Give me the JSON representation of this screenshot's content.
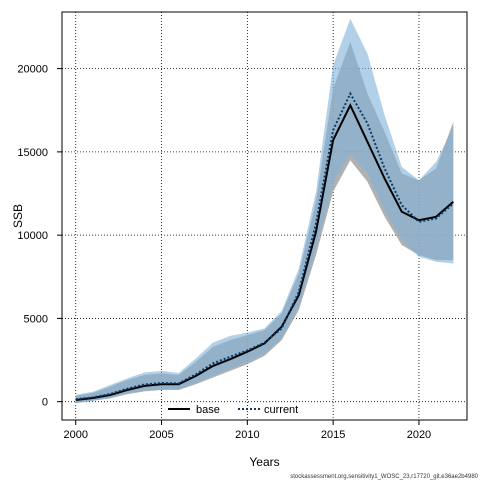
{
  "chart_data": {
    "type": "line",
    "xlabel": "Years",
    "ylabel": "SSB",
    "xlim": [
      1999.2,
      2022.8
    ],
    "ylim": [
      -1100,
      23400
    ],
    "xticks": [
      2000,
      2005,
      2010,
      2015,
      2020
    ],
    "yticks": [
      0,
      5000,
      10000,
      15000,
      20000
    ],
    "grid": true,
    "legend_position": "bottom-center",
    "x": [
      2000,
      2001,
      2002,
      2003,
      2004,
      2005,
      2006,
      2007,
      2008,
      2009,
      2010,
      2011,
      2012,
      2013,
      2014,
      2015,
      2016,
      2017,
      2018,
      2019,
      2020,
      2021,
      2022
    ],
    "series": [
      {
        "name": "base",
        "color": "#000000",
        "band_color": "#9e9e9e",
        "values": [
          100,
          220,
          400,
          700,
          950,
          1050,
          1050,
          1550,
          2150,
          2550,
          3000,
          3500,
          4500,
          6400,
          10200,
          15700,
          17800,
          15600,
          13400,
          11400,
          10900,
          11100,
          12000
        ],
        "lower": [
          -100,
          50,
          200,
          450,
          620,
          700,
          700,
          1050,
          1450,
          1850,
          2250,
          2750,
          3700,
          5500,
          8800,
          12600,
          14500,
          13200,
          11100,
          9400,
          8800,
          8500,
          8500
        ],
        "upper": [
          350,
          520,
          900,
          1300,
          1600,
          1700,
          1600,
          2400,
          3300,
          3700,
          4000,
          4300,
          5300,
          7700,
          12000,
          18800,
          21600,
          18500,
          16200,
          13700,
          13300,
          14000,
          16800
        ]
      },
      {
        "name": "current",
        "color": "#0b3a66",
        "band_color": "#7fb2d8",
        "values": [
          150,
          260,
          460,
          780,
          1030,
          1120,
          1100,
          1650,
          2300,
          2700,
          3080,
          3550,
          4400,
          6600,
          10700,
          16300,
          18500,
          16700,
          14000,
          11800,
          10800,
          11000,
          11900
        ],
        "lower": [
          -80,
          60,
          230,
          500,
          680,
          760,
          740,
          1130,
          1560,
          1980,
          2380,
          2880,
          3800,
          5700,
          9200,
          13100,
          14900,
          13700,
          11500,
          9700,
          8700,
          8400,
          8300
        ],
        "upper": [
          420,
          600,
          1000,
          1400,
          1750,
          1850,
          1720,
          2600,
          3550,
          3950,
          4150,
          4400,
          5450,
          8000,
          12600,
          20200,
          23000,
          20900,
          17200,
          14100,
          13300,
          14400,
          16500
        ]
      }
    ]
  },
  "footer": {
    "text": "stockassessment.org,sensitivity1_WOSC_23,r17720_git.e36ae2b4980"
  }
}
